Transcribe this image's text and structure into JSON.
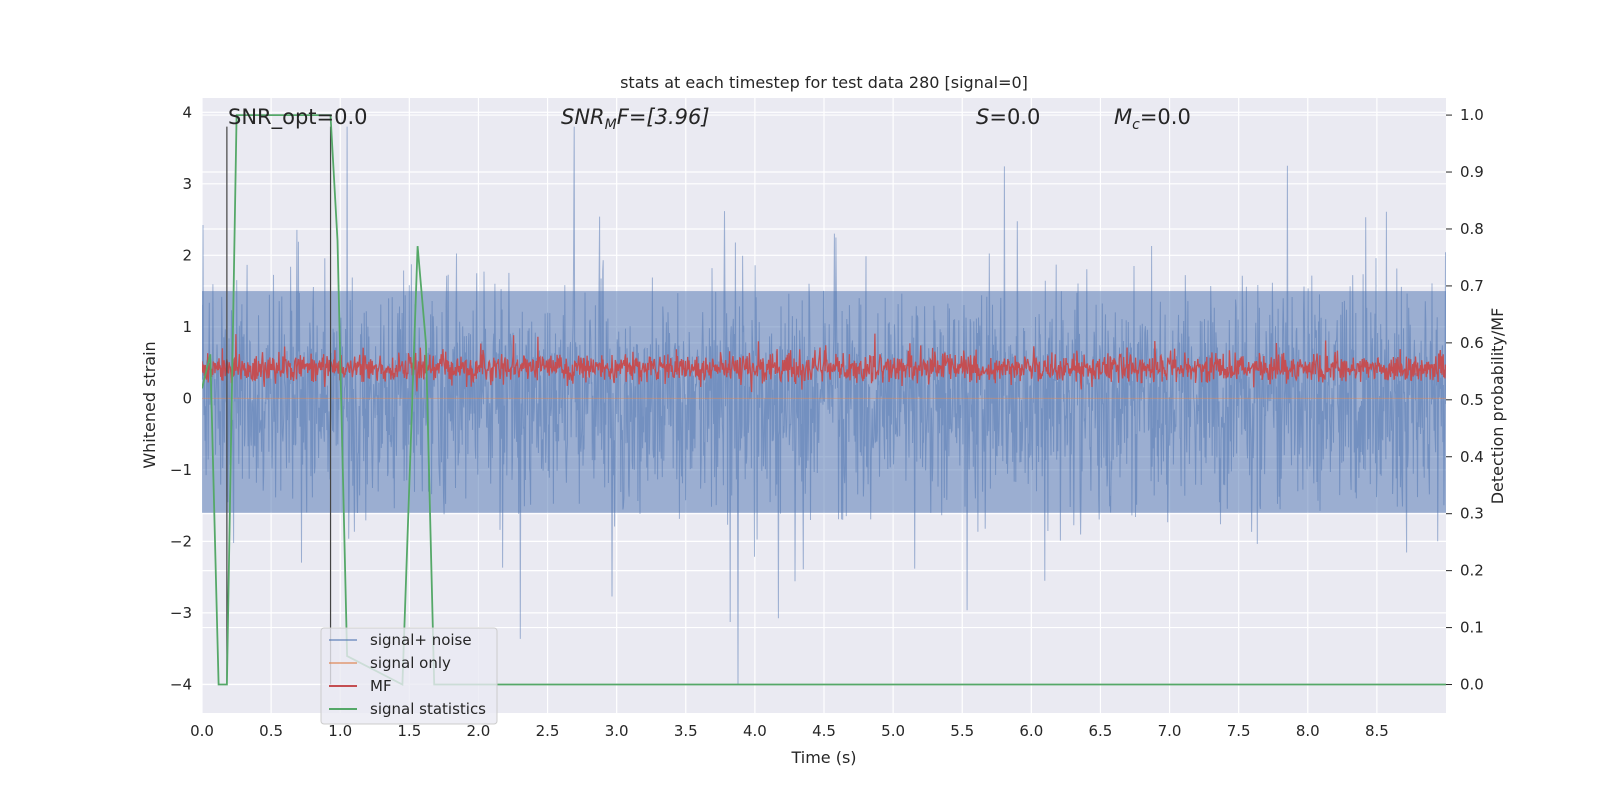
{
  "chart_data": {
    "type": "line",
    "title": "stats at each timestep for test data 280 [signal=0]",
    "xlabel": "Time (s)",
    "ylabel": "Whitened strain",
    "ylabel_right": "Detection probability/MF",
    "xlim": [
      0.0,
      9.0
    ],
    "ylim": [
      -4.4,
      4.2
    ],
    "ylim_right": [
      -0.05,
      1.03
    ],
    "x_ticks": [
      "0.0",
      "0.5",
      "1.0",
      "1.5",
      "2.0",
      "2.5",
      "3.0",
      "3.5",
      "4.0",
      "4.5",
      "5.0",
      "5.5",
      "6.0",
      "6.5",
      "7.0",
      "7.5",
      "8.0",
      "8.5"
    ],
    "y_ticks": [
      "4",
      "3",
      "2",
      "1",
      "0",
      "−1",
      "−2",
      "−3",
      "−4"
    ],
    "y_ticks_right": [
      "1.0",
      "0.9",
      "0.8",
      "0.7",
      "0.6",
      "0.5",
      "0.4",
      "0.3",
      "0.2",
      "0.1",
      "0.0"
    ],
    "grid": true,
    "legend_placement": "lower-left",
    "annotations": {
      "snr_opt": "SNR_opt=0.0",
      "snr_mf_prefix": "SNR",
      "snr_mf_sub": "M",
      "snr_mf_suffix": "F=[3.96]",
      "s_prefix": "S",
      "s_suffix": "=0.0",
      "mc_prefix": "M",
      "mc_sub": "c",
      "mc_suffix": "=0.0"
    },
    "series": [
      {
        "name": "signal+ noise",
        "color": "#4c72b0",
        "axis": "left",
        "description_range": [
          -4.0,
          3.8
        ],
        "band_range": [
          -1.6,
          1.5
        ]
      },
      {
        "name": "signal only",
        "color": "#dd8452",
        "axis": "left",
        "values_constant": 0.0
      },
      {
        "name": "MF",
        "color": "#c44e52",
        "axis": "right",
        "band_range": [
          0.52,
          0.6
        ]
      },
      {
        "name": "signal statistics",
        "color": "#55a868",
        "axis": "right",
        "x": [
          0.0,
          0.06,
          0.12,
          0.18,
          0.25,
          0.93,
          0.98,
          1.05,
          1.45,
          1.56,
          1.62,
          1.68,
          9.0
        ],
        "y": [
          0.52,
          0.58,
          0.0,
          0.0,
          1.0,
          1.0,
          0.78,
          0.05,
          0.0,
          0.77,
          0.6,
          0.0,
          0.0
        ]
      }
    ],
    "vertical_markers_x": [
      0.18,
      0.93
    ]
  }
}
